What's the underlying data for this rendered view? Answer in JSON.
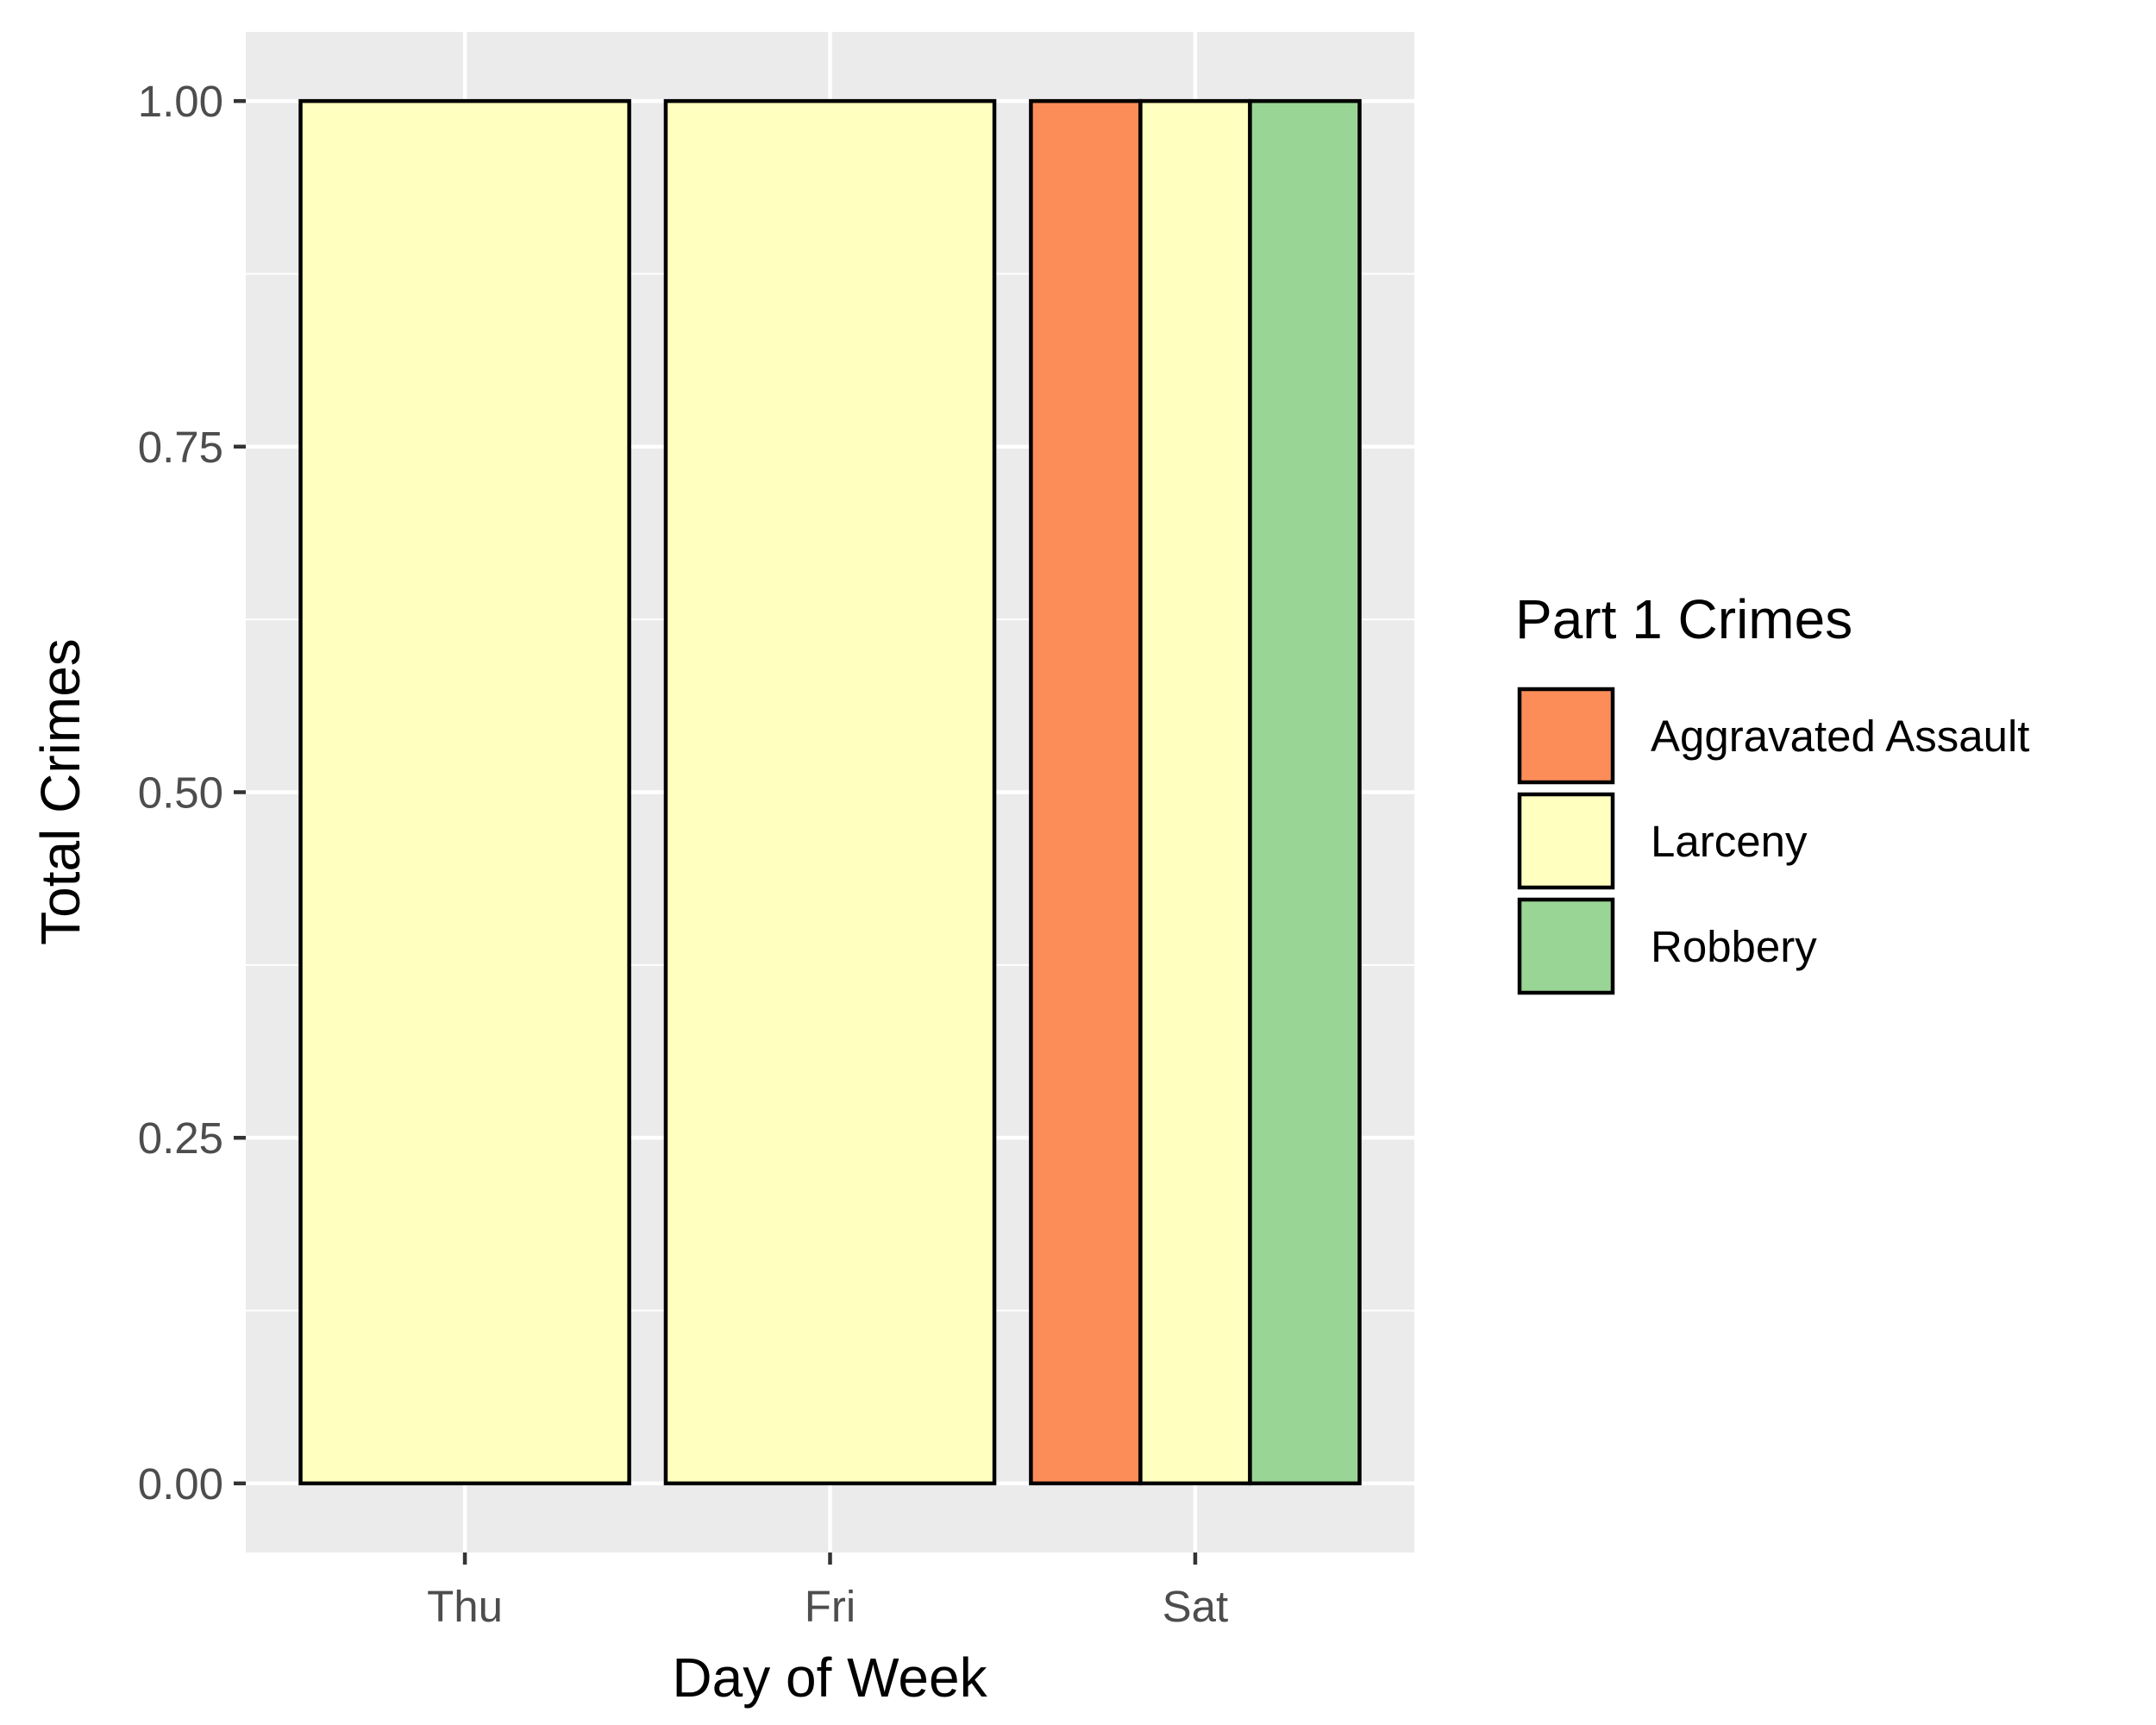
{
  "chart_data": {
    "type": "bar",
    "position": "dodge",
    "categories": [
      "Thu",
      "Fri",
      "Sat"
    ],
    "series": [
      {
        "name": "Aggravated Assault",
        "color": "#fc8d59",
        "values": [
          null,
          null,
          1
        ]
      },
      {
        "name": "Larceny",
        "color": "#ffffbf",
        "values": [
          1,
          1,
          1
        ]
      },
      {
        "name": "Robbery",
        "color": "#99d594",
        "values": [
          null,
          null,
          1
        ]
      }
    ],
    "xlabel": "Day of Week",
    "ylabel": "Total Crimes",
    "ylim": [
      -0.05,
      1.05
    ],
    "yticks": [
      "0.00",
      "0.25",
      "0.50",
      "0.75",
      "1.00"
    ],
    "ytick_values": [
      0,
      0.25,
      0.5,
      0.75,
      1
    ],
    "grid": true,
    "legend": {
      "title": "Part 1 Crimes",
      "position": "right"
    },
    "panel_background": "#ebebeb",
    "bar_outline": "#000000"
  }
}
